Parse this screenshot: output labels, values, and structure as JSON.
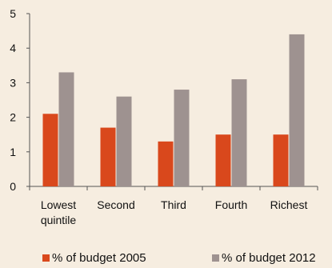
{
  "chart_data": {
    "type": "bar",
    "categories": [
      [
        "Lowest",
        "quintile"
      ],
      [
        "Second"
      ],
      [
        "Third"
      ],
      [
        "Fourth"
      ],
      [
        "Richest"
      ]
    ],
    "series": [
      {
        "name": "% of budget 2005",
        "color": "#d9481c",
        "values": [
          2.1,
          1.7,
          1.3,
          1.5,
          1.5
        ]
      },
      {
        "name": "% of budget 2012",
        "color": "#9e9290",
        "values": [
          3.3,
          2.6,
          2.8,
          3.1,
          4.4
        ]
      }
    ],
    "title": "",
    "xlabel": "",
    "ylabel": "",
    "ylim": [
      0,
      5
    ],
    "yticks": [
      "0",
      "1",
      "2",
      "3",
      "4",
      "5"
    ],
    "grid": false,
    "legend_position": "bottom"
  }
}
